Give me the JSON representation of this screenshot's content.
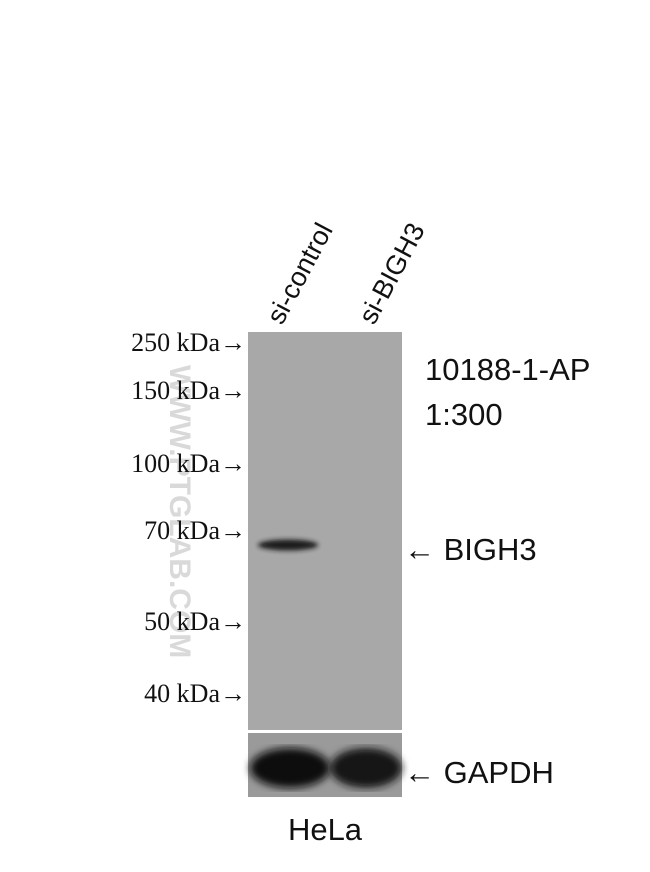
{
  "lanes": [
    "si-control",
    "si-BIGH3"
  ],
  "markers": [
    "250 kDa→",
    "150 kDa→",
    "100 kDa→",
    "70 kDa→",
    "50 kDa→",
    "40 kDa→"
  ],
  "antibody": "10188-1-AP",
  "dilution": "1:300",
  "bands": [
    "← BIGH3",
    "← GAPDH"
  ],
  "cell_line": "HeLa",
  "watermark": "WWW.PTGLAB.COM"
}
